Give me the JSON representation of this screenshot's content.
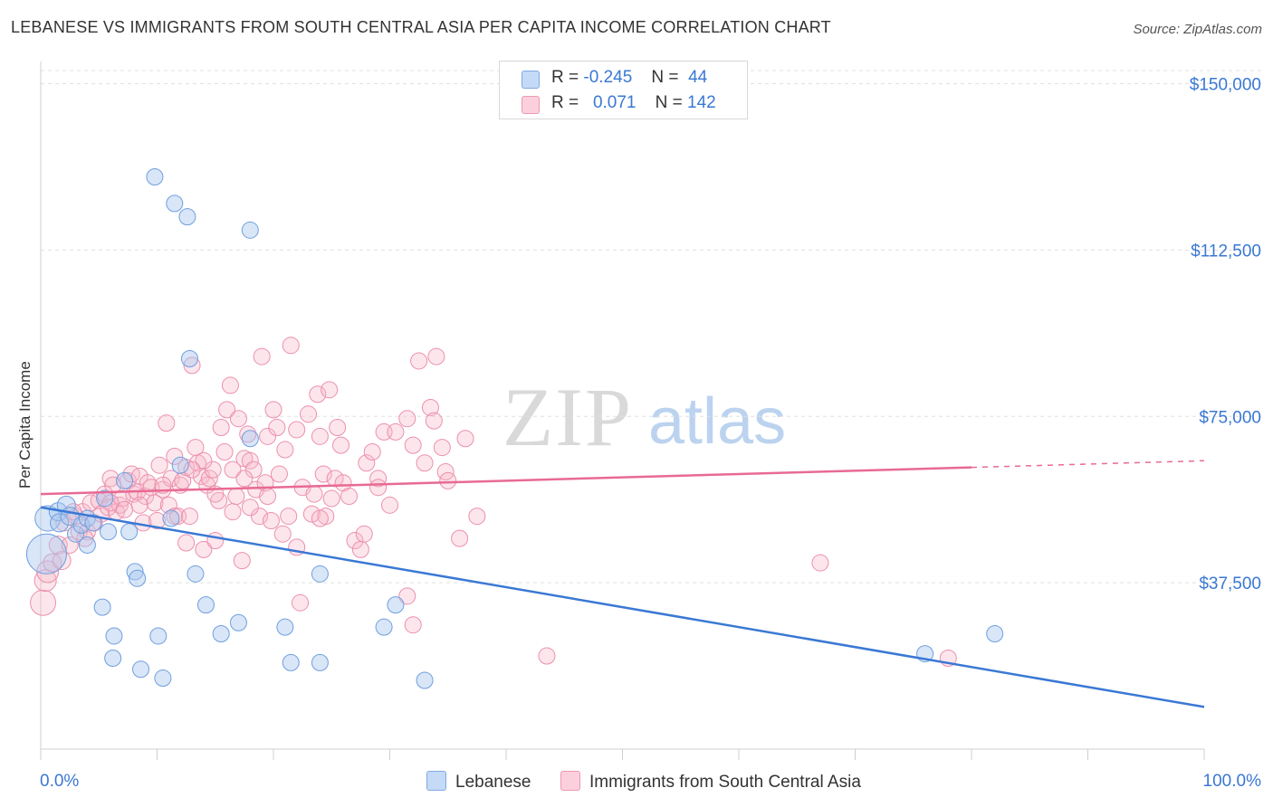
{
  "title": "LEBANESE VS IMMIGRANTS FROM SOUTH CENTRAL ASIA PER CAPITA INCOME CORRELATION CHART",
  "source": "Source: ZipAtlas.com",
  "watermark": {
    "zip": "ZIP",
    "atlas": "atlas"
  },
  "legend_top": [
    {
      "r_label": "R =",
      "r_value": "-0.245",
      "n_label": "N =",
      "n_value": "44",
      "color": "#a9c8f0"
    },
    {
      "r_label": "R =",
      "r_value": "0.071",
      "n_label": "N =",
      "n_value": "142",
      "color": "#f7b6c9"
    }
  ],
  "legend_bottom": [
    {
      "label": "Lebanese",
      "color": "#a9c8f0"
    },
    {
      "label": "Immigrants from South Central Asia",
      "color": "#f7b6c9"
    }
  ],
  "chart_data": {
    "type": "scatter",
    "title": "LEBANESE VS IMMIGRANTS FROM SOUTH CENTRAL ASIA PER CAPITA INCOME CORRELATION CHART",
    "xlabel": "",
    "ylabel": "Per Capita Income",
    "xlim": [
      0,
      100
    ],
    "ylim": [
      0,
      155000
    ],
    "x_tick_labels": [
      "0.0%",
      "100.0%"
    ],
    "y_ticks": [
      37500,
      75000,
      112500,
      150000
    ],
    "y_tick_labels": [
      "$37,500",
      "$75,000",
      "$112,500",
      "$150,000"
    ],
    "grid": true,
    "legend_position": "top-center",
    "colors": {
      "blue": "#3a78d4",
      "blue_fill": "#a9c8f0",
      "pink": "#e86a94",
      "pink_fill": "#f7b6c9",
      "axis_text": "#3a78d4"
    },
    "series": [
      {
        "name": "Lebanese",
        "color": "#3a78d4",
        "trend": {
          "x": [
            0,
            100
          ],
          "y": [
            54500,
            9500
          ]
        },
        "points": [
          [
            0.5,
            44000,
            22
          ],
          [
            0.6,
            52000,
            14
          ],
          [
            1.5,
            53500,
            10
          ],
          [
            1.6,
            51000,
            10
          ],
          [
            2.2,
            55000,
            10
          ],
          [
            2.5,
            52500,
            10
          ],
          [
            3.0,
            48500,
            9
          ],
          [
            3.5,
            50500,
            9
          ],
          [
            4.0,
            52000,
            9
          ],
          [
            4.5,
            51000,
            9
          ],
          [
            4.0,
            46000,
            9
          ],
          [
            5.5,
            56500,
            9
          ],
          [
            5.8,
            49000,
            9
          ],
          [
            5.3,
            32000,
            9
          ],
          [
            6.3,
            25500,
            9
          ],
          [
            6.2,
            20500,
            9
          ],
          [
            7.2,
            60500,
            9
          ],
          [
            7.6,
            49000,
            9
          ],
          [
            8.1,
            40000,
            9
          ],
          [
            8.3,
            38500,
            9
          ],
          [
            8.6,
            18000,
            9
          ],
          [
            9.8,
            129000,
            9
          ],
          [
            10.1,
            25500,
            9
          ],
          [
            10.5,
            16000,
            9
          ],
          [
            11.5,
            123000,
            9
          ],
          [
            12.0,
            64000,
            9
          ],
          [
            12.6,
            120000,
            9
          ],
          [
            12.8,
            88000,
            9
          ],
          [
            13.3,
            39500,
            9
          ],
          [
            14.2,
            32500,
            9
          ],
          [
            15.5,
            26000,
            9
          ],
          [
            17.0,
            28500,
            9
          ],
          [
            18.0,
            117000,
            9
          ],
          [
            18.0,
            70000,
            9
          ],
          [
            21.0,
            27500,
            9
          ],
          [
            21.5,
            19500,
            9
          ],
          [
            24.0,
            19500,
            9
          ],
          [
            24.0,
            39500,
            9
          ],
          [
            29.5,
            27500,
            9
          ],
          [
            30.5,
            32500,
            9
          ],
          [
            33.0,
            15500,
            9
          ],
          [
            76.0,
            21500,
            9
          ],
          [
            82.0,
            26000,
            9
          ],
          [
            11.2,
            52000,
            9
          ]
        ]
      },
      {
        "name": "Immigrants from South Central Asia",
        "color": "#e86a94",
        "trend": {
          "x": [
            0,
            80
          ],
          "y": [
            57500,
            63500
          ],
          "dashed_to": [
            100,
            65000
          ]
        },
        "points": [
          [
            0.2,
            33000,
            14
          ],
          [
            0.4,
            38000,
            12
          ],
          [
            0.6,
            40000,
            12
          ],
          [
            1.0,
            42000,
            10
          ],
          [
            1.5,
            46000,
            10
          ],
          [
            1.8,
            42500,
            10
          ],
          [
            2.0,
            51000,
            9
          ],
          [
            2.5,
            46000,
            9
          ],
          [
            3.0,
            52500,
            9
          ],
          [
            3.3,
            49000,
            9
          ],
          [
            3.6,
            53500,
            9
          ],
          [
            4.0,
            49000,
            9
          ],
          [
            4.3,
            55500,
            9
          ],
          [
            4.6,
            51000,
            9
          ],
          [
            5.0,
            56000,
            9
          ],
          [
            5.2,
            53000,
            9
          ],
          [
            5.5,
            57500,
            9
          ],
          [
            5.8,
            54500,
            9
          ],
          [
            6.0,
            61000,
            9
          ],
          [
            6.2,
            59500,
            9
          ],
          [
            6.5,
            53500,
            9
          ],
          [
            6.8,
            55000,
            9
          ],
          [
            7.0,
            56500,
            9
          ],
          [
            7.2,
            54000,
            9
          ],
          [
            7.5,
            60500,
            9
          ],
          [
            7.8,
            62000,
            9
          ],
          [
            8.0,
            57500,
            9
          ],
          [
            8.3,
            58000,
            9
          ],
          [
            8.5,
            61500,
            9
          ],
          [
            8.8,
            51000,
            9
          ],
          [
            9.0,
            57000,
            9
          ],
          [
            9.2,
            60000,
            9
          ],
          [
            9.5,
            59000,
            9
          ],
          [
            9.8,
            55500,
            9
          ],
          [
            10.0,
            51500,
            9
          ],
          [
            10.2,
            64000,
            9
          ],
          [
            10.5,
            58500,
            9
          ],
          [
            10.8,
            73500,
            9
          ],
          [
            11.0,
            55000,
            9
          ],
          [
            11.2,
            61000,
            9
          ],
          [
            11.5,
            52500,
            9
          ],
          [
            11.8,
            52500,
            9
          ],
          [
            12.0,
            59500,
            9
          ],
          [
            12.2,
            60500,
            9
          ],
          [
            12.5,
            63500,
            9
          ],
          [
            12.8,
            52500,
            9
          ],
          [
            13.0,
            86500,
            9
          ],
          [
            13.3,
            68000,
            9
          ],
          [
            13.5,
            64500,
            9
          ],
          [
            13.8,
            61500,
            9
          ],
          [
            14.0,
            45000,
            9
          ],
          [
            14.3,
            59500,
            9
          ],
          [
            14.5,
            61000,
            9
          ],
          [
            14.8,
            63000,
            9
          ],
          [
            15.0,
            47000,
            9
          ],
          [
            15.3,
            56000,
            9
          ],
          [
            15.5,
            72500,
            9
          ],
          [
            15.8,
            67000,
            9
          ],
          [
            16.0,
            76500,
            9
          ],
          [
            16.3,
            82000,
            9
          ],
          [
            16.5,
            53500,
            9
          ],
          [
            16.8,
            57000,
            9
          ],
          [
            17.0,
            74500,
            9
          ],
          [
            17.3,
            42500,
            9
          ],
          [
            17.5,
            65500,
            9
          ],
          [
            17.8,
            71000,
            9
          ],
          [
            18.0,
            65000,
            9
          ],
          [
            18.3,
            63000,
            9
          ],
          [
            18.5,
            58500,
            9
          ],
          [
            18.8,
            52500,
            9
          ],
          [
            19.0,
            88500,
            9
          ],
          [
            19.3,
            60000,
            9
          ],
          [
            19.5,
            70500,
            9
          ],
          [
            19.8,
            51500,
            9
          ],
          [
            20.0,
            76500,
            9
          ],
          [
            20.3,
            72500,
            9
          ],
          [
            20.5,
            62000,
            9
          ],
          [
            20.8,
            48500,
            9
          ],
          [
            21.0,
            67500,
            9
          ],
          [
            21.3,
            52500,
            9
          ],
          [
            21.5,
            91000,
            9
          ],
          [
            22.0,
            72000,
            9
          ],
          [
            22.3,
            33000,
            9
          ],
          [
            22.5,
            59000,
            9
          ],
          [
            23.0,
            75500,
            9
          ],
          [
            23.3,
            53000,
            9
          ],
          [
            23.5,
            57500,
            9
          ],
          [
            23.8,
            80000,
            9
          ],
          [
            24.0,
            70500,
            9
          ],
          [
            24.3,
            62000,
            9
          ],
          [
            24.5,
            52500,
            9
          ],
          [
            24.8,
            81000,
            9
          ],
          [
            25.0,
            56500,
            9
          ],
          [
            25.3,
            61000,
            9
          ],
          [
            25.5,
            72500,
            9
          ],
          [
            25.8,
            68500,
            9
          ],
          [
            26.0,
            60000,
            9
          ],
          [
            27.0,
            47000,
            9
          ],
          [
            27.5,
            45000,
            9
          ],
          [
            27.8,
            48500,
            9
          ],
          [
            28.0,
            64500,
            9
          ],
          [
            28.5,
            67000,
            9
          ],
          [
            29.0,
            61000,
            9
          ],
          [
            29.5,
            71500,
            9
          ],
          [
            30.0,
            55000,
            9
          ],
          [
            30.5,
            71500,
            9
          ],
          [
            31.5,
            74500,
            9
          ],
          [
            32.0,
            68500,
            9
          ],
          [
            32.5,
            87500,
            9
          ],
          [
            33.0,
            64500,
            9
          ],
          [
            33.5,
            77000,
            9
          ],
          [
            33.8,
            74000,
            9
          ],
          [
            34.0,
            88500,
            9
          ],
          [
            34.5,
            68000,
            9
          ],
          [
            34.8,
            62500,
            9
          ],
          [
            35.0,
            60500,
            9
          ],
          [
            36.0,
            47500,
            9
          ],
          [
            36.5,
            70000,
            9
          ],
          [
            37.5,
            52500,
            9
          ],
          [
            43.5,
            21000,
            9
          ],
          [
            67.0,
            42000,
            9
          ],
          [
            78.0,
            20500,
            9
          ],
          [
            32.0,
            28000,
            9
          ],
          [
            31.5,
            34500,
            9
          ],
          [
            29.0,
            59000,
            9
          ],
          [
            24.0,
            52000,
            9
          ],
          [
            8.5,
            55000,
            9
          ],
          [
            12.5,
            46500,
            9
          ],
          [
            18.0,
            54500,
            9
          ],
          [
            2.8,
            53500,
            9
          ],
          [
            3.8,
            47500,
            9
          ],
          [
            6.0,
            55500,
            9
          ],
          [
            14.0,
            65000,
            9
          ],
          [
            16.5,
            63000,
            9
          ],
          [
            19.5,
            57000,
            9
          ],
          [
            10.5,
            59500,
            9
          ],
          [
            11.5,
            66000,
            9
          ],
          [
            15.0,
            57500,
            9
          ],
          [
            22.0,
            45500,
            9
          ],
          [
            26.5,
            57000,
            9
          ],
          [
            13.0,
            63000,
            9
          ],
          [
            17.5,
            61000,
            9
          ]
        ]
      }
    ]
  }
}
